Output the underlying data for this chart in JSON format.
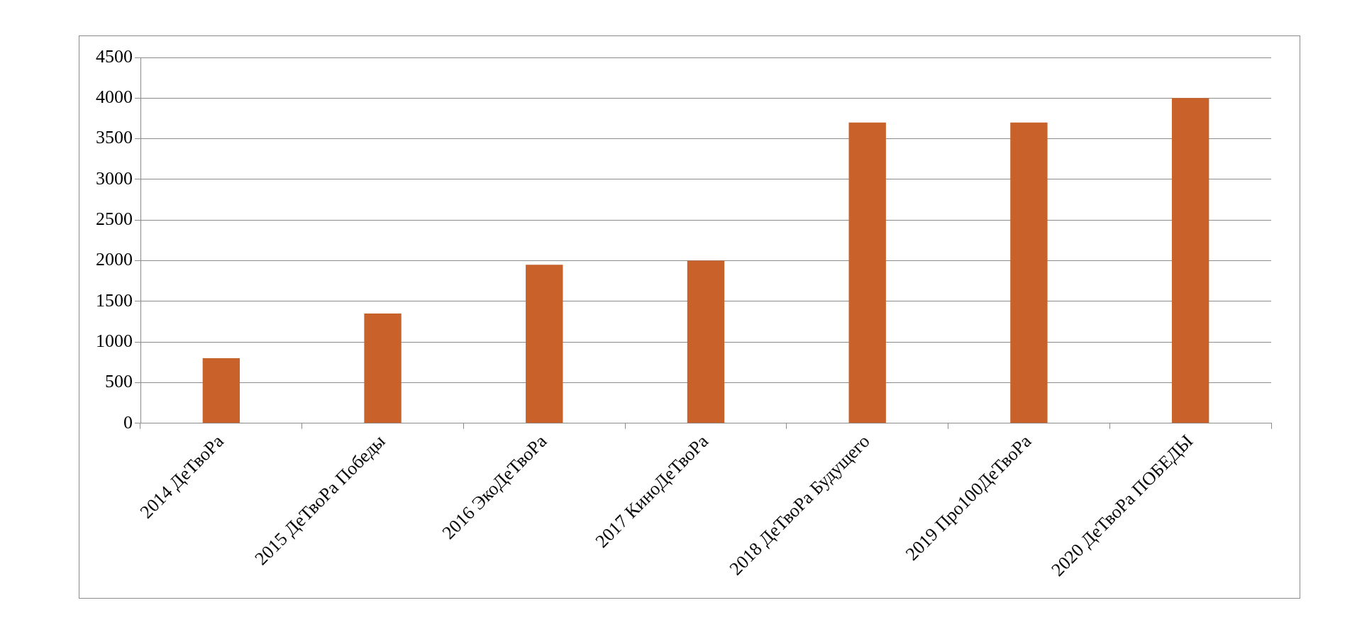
{
  "chart_data": {
    "type": "bar",
    "categories": [
      "2014 ДеТвоРа",
      "2015 ДеТвоРа Победы",
      "2016 ЭкоДеТвоРа",
      "2017 КиноДеТвоРа",
      "2018 ДеТвоРа Будущего",
      "2019 Про100ДеТвоРа",
      "2020 ДеТвоРа ПОБЕДЫ"
    ],
    "values": [
      800,
      1350,
      1950,
      2000,
      3700,
      3700,
      4000
    ],
    "color": "#c8622a",
    "ylim": [
      0,
      4500
    ],
    "yticks": [
      0,
      500,
      1000,
      1500,
      2000,
      2500,
      3000,
      3500,
      4000,
      4500
    ],
    "grid": "y",
    "legend": false
  }
}
